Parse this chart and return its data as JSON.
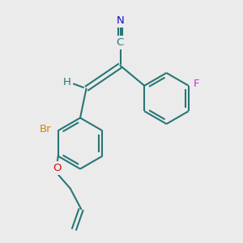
{
  "bg": "#ebebeb",
  "bc": "#2a7575",
  "N_color": "#1111cc",
  "F_color": "#cc33cc",
  "Br_color": "#cc8800",
  "O_color": "#cc1111",
  "lw": 1.5,
  "fsz": 9.5,
  "fig_w": 3.0,
  "fig_h": 3.0,
  "dpi": 100,
  "xlim": [
    0,
    10
  ],
  "ylim": [
    0,
    10
  ]
}
